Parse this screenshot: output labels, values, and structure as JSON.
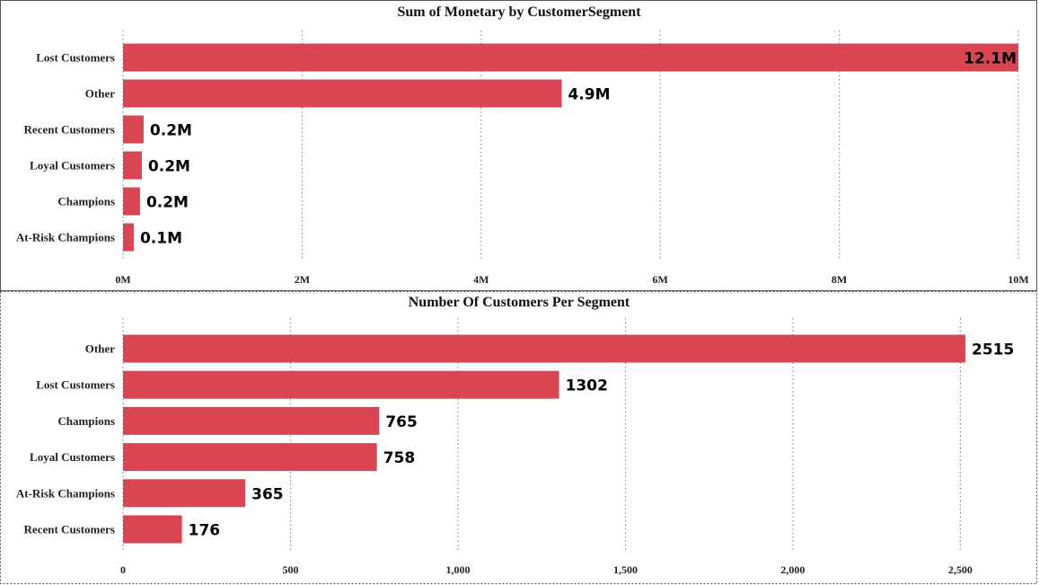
{
  "chart_data": [
    {
      "type": "bar",
      "orientation": "horizontal",
      "title": "Sum of Monetary by CustomerSegment",
      "categories": [
        "Lost Customers",
        "Other",
        "Recent Customers",
        "Loyal Customers",
        "Champions",
        "At-Risk Champions"
      ],
      "values": [
        12100000,
        4900000,
        230000,
        210000,
        190000,
        120000
      ],
      "data_labels": [
        "12.1M",
        "4.9M",
        "0.2M",
        "0.2M",
        "0.2M",
        "0.1M"
      ],
      "xlim": [
        0,
        10000000
      ],
      "xticks": [
        0,
        2000000,
        4000000,
        6000000,
        8000000,
        10000000
      ],
      "xtick_labels": [
        "0M",
        "2M",
        "4M",
        "6M",
        "8M",
        "10M"
      ],
      "grid": true,
      "color": "#d94651"
    },
    {
      "type": "bar",
      "orientation": "horizontal",
      "title": "Number Of Customers Per Segment",
      "categories": [
        "Other",
        "Lost Customers",
        "Champions",
        "Loyal Customers",
        "At-Risk Champions",
        "Recent Customers"
      ],
      "values": [
        2515,
        1302,
        765,
        758,
        365,
        176
      ],
      "data_labels": [
        "2515",
        "1302",
        "765",
        "758",
        "365",
        "176"
      ],
      "xlim": [
        0,
        2700
      ],
      "xticks": [
        0,
        500,
        1000,
        1500,
        2000,
        2500
      ],
      "xtick_labels": [
        "0",
        "500",
        "1,000",
        "1,500",
        "2,000",
        "2,500"
      ],
      "grid": true,
      "color": "#d94651"
    }
  ]
}
